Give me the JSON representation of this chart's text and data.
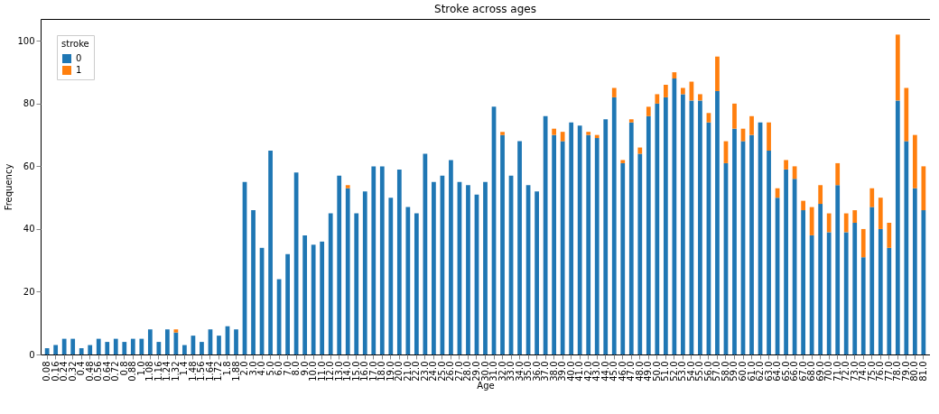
{
  "chart_data": {
    "type": "bar",
    "title": "Stroke across ages",
    "xlabel": "Age",
    "ylabel": "Frequency",
    "legend_title": "stroke",
    "stacked": true,
    "legend": "top left",
    "grid": false,
    "ylim": [
      0,
      107
    ],
    "yticks": [
      0,
      20,
      40,
      60,
      80,
      100
    ],
    "categories": [
      "0.08",
      "0.16",
      "0.24",
      "0.32",
      "0.4",
      "0.48",
      "0.56",
      "0.64",
      "0.72",
      "0.8",
      "0.88",
      "1.0",
      "1.08",
      "1.16",
      "1.24",
      "1.32",
      "1.4",
      "1.48",
      "1.56",
      "1.64",
      "1.72",
      "1.8",
      "1.88",
      "2.0",
      "3.0",
      "4.0",
      "5.0",
      "6.0",
      "7.0",
      "8.0",
      "9.0",
      "10.0",
      "11.0",
      "12.0",
      "13.0",
      "14.0",
      "15.0",
      "16.0",
      "17.0",
      "18.0",
      "19.0",
      "20.0",
      "21.0",
      "22.0",
      "23.0",
      "24.0",
      "25.0",
      "26.0",
      "27.0",
      "28.0",
      "29.0",
      "30.0",
      "31.0",
      "32.0",
      "33.0",
      "34.0",
      "35.0",
      "36.0",
      "37.0",
      "38.0",
      "39.0",
      "40.0",
      "41.0",
      "42.0",
      "43.0",
      "44.0",
      "45.0",
      "46.0",
      "47.0",
      "48.0",
      "49.0",
      "50.0",
      "51.0",
      "52.0",
      "53.0",
      "54.0",
      "55.0",
      "56.0",
      "57.0",
      "58.0",
      "59.0",
      "60.0",
      "61.0",
      "62.0",
      "63.0",
      "64.0",
      "65.0",
      "66.0",
      "67.0",
      "68.0",
      "69.0",
      "70.0",
      "71.0",
      "72.0",
      "73.0",
      "74.0",
      "75.0",
      "76.0",
      "77.0",
      "78.0",
      "79.0",
      "80.0",
      "81.0"
    ],
    "series": [
      {
        "name": "0",
        "color": "#1f77b4",
        "values": [
          2,
          3,
          5,
          5,
          2,
          3,
          5,
          4,
          5,
          4,
          5,
          5,
          8,
          4,
          8,
          7,
          3,
          6,
          4,
          8,
          6,
          9,
          8,
          55,
          46,
          34,
          65,
          24,
          32,
          58,
          38,
          35,
          36,
          45,
          57,
          53,
          45,
          52,
          60,
          60,
          50,
          59,
          47,
          45,
          64,
          55,
          57,
          62,
          55,
          54,
          51,
          55,
          79,
          70,
          57,
          68,
          54,
          52,
          76,
          70,
          68,
          74,
          73,
          70,
          69,
          75,
          82,
          61,
          74,
          64,
          76,
          80,
          82,
          88,
          83,
          81,
          81,
          74,
          84,
          61,
          72,
          68,
          70,
          74,
          65,
          50,
          59,
          56,
          46,
          38,
          48,
          39,
          54,
          39,
          42,
          31,
          47,
          40,
          34,
          81,
          68,
          53,
          46
        ]
      },
      {
        "name": "1",
        "color": "#ff7f0e",
        "values": [
          0,
          0,
          0,
          0,
          0,
          0,
          0,
          0,
          0,
          0,
          0,
          0,
          0,
          0,
          0,
          1,
          0,
          0,
          0,
          0,
          0,
          0,
          0,
          0,
          0,
          0,
          0,
          0,
          0,
          0,
          0,
          0,
          0,
          0,
          0,
          1,
          0,
          0,
          0,
          0,
          0,
          0,
          0,
          0,
          0,
          0,
          0,
          0,
          0,
          0,
          0,
          0,
          0,
          1,
          0,
          0,
          0,
          0,
          0,
          2,
          3,
          0,
          0,
          1,
          1,
          0,
          3,
          1,
          1,
          2,
          3,
          3,
          4,
          2,
          2,
          6,
          2,
          3,
          11,
          7,
          8,
          4,
          6,
          0,
          9,
          3,
          3,
          4,
          3,
          9,
          6,
          6,
          7,
          6,
          4,
          9,
          6,
          10,
          8,
          21,
          17,
          17,
          14
        ]
      }
    ]
  }
}
